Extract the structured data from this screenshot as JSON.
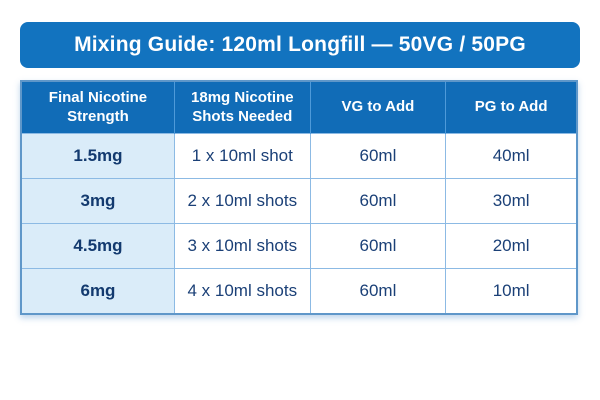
{
  "title": "Mixing Guide: 120ml Longfill — 50VG / 50PG",
  "table": {
    "columns": [
      "Final Nicotine Strength",
      "18mg Nicotine Shots Needed",
      "VG to Add",
      "PG to Add"
    ],
    "rows": [
      {
        "strength": "1.5mg",
        "shots": "1 x 10ml shot",
        "vg": "60ml",
        "pg": "40ml"
      },
      {
        "strength": "3mg",
        "shots": "2 x 10ml shots",
        "vg": "60ml",
        "pg": "30ml"
      },
      {
        "strength": "4.5mg",
        "shots": "3 x 10ml shots",
        "vg": "60ml",
        "pg": "20ml"
      },
      {
        "strength": "6mg",
        "shots": "4 x 10ml shots",
        "vg": "60ml",
        "pg": "10ml"
      }
    ]
  },
  "colors": {
    "banner_blue": "#1273bf",
    "header_blue": "#116cb7",
    "first_column_bg": "#daecf9",
    "body_text": "#1b4077",
    "grid_line": "#8cbae4"
  }
}
